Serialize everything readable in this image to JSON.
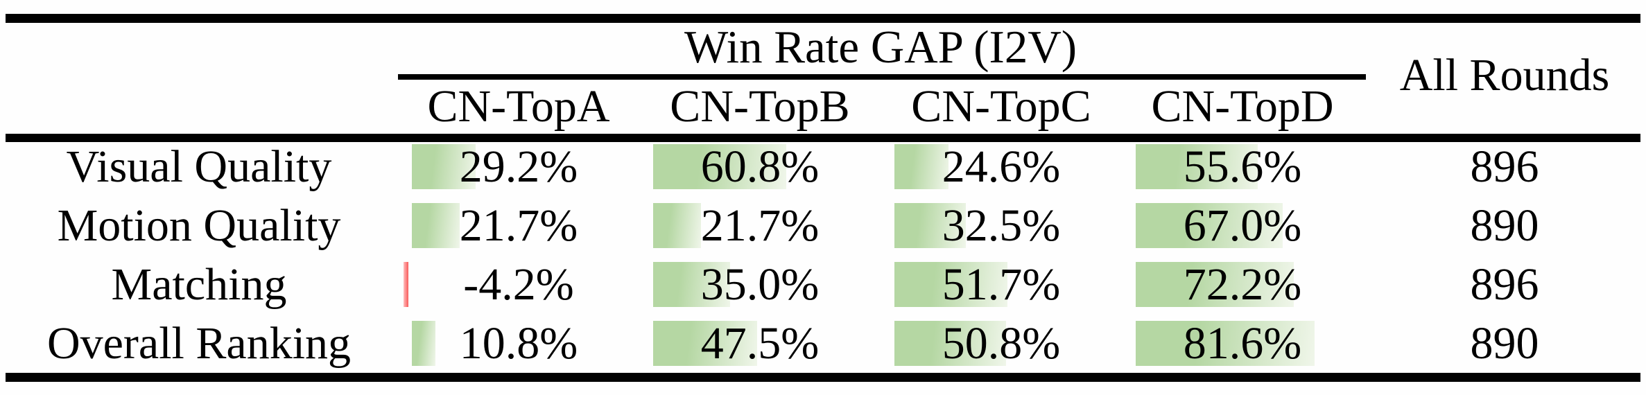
{
  "table": {
    "title": "Win Rate GAP (I2V)",
    "all_rounds_header": "All Rounds",
    "columns": [
      "CN-TopA",
      "CN-TopB",
      "CN-TopC",
      "CN-TopD"
    ],
    "rows": [
      {
        "label": "Visual Quality",
        "values": [
          29.2,
          60.8,
          24.6,
          55.6
        ],
        "display": [
          "29.2%",
          "60.8%",
          "24.6%",
          "55.6%"
        ],
        "all_rounds": "896"
      },
      {
        "label": "Motion Quality",
        "values": [
          21.7,
          21.7,
          32.5,
          67.0
        ],
        "display": [
          "21.7%",
          "21.7%",
          "32.5%",
          "67.0%"
        ],
        "all_rounds": "890"
      },
      {
        "label": "Matching",
        "values": [
          -4.2,
          35.0,
          51.7,
          72.2
        ],
        "display": [
          "-4.2%",
          "35.0%",
          "51.7%",
          "72.2%"
        ],
        "all_rounds": "896"
      },
      {
        "label": "Overall Ranking",
        "values": [
          10.8,
          47.5,
          50.8,
          81.6
        ],
        "display": [
          "10.8%",
          "47.5%",
          "50.8%",
          "81.6%"
        ],
        "all_rounds": "890"
      }
    ],
    "colors": {
      "bar_positive": "#b5d7a3",
      "bar_positive_fade": "#f0f6ea",
      "bar_negative": "#f85b5b",
      "bar_negative_fade": "#ffbdbd",
      "rule_black": "#000000"
    }
  },
  "chart_data": {
    "type": "table",
    "title": "Win Rate GAP (I2V)",
    "categories": [
      "Visual Quality",
      "Motion Quality",
      "Matching",
      "Overall Ranking"
    ],
    "series": [
      {
        "name": "CN-TopA",
        "values": [
          29.2,
          21.7,
          -4.2,
          10.8
        ]
      },
      {
        "name": "CN-TopB",
        "values": [
          60.8,
          21.7,
          35.0,
          47.5
        ]
      },
      {
        "name": "CN-TopC",
        "values": [
          24.6,
          32.5,
          51.7,
          50.8
        ]
      },
      {
        "name": "CN-TopD",
        "values": [
          55.6,
          67.0,
          72.2,
          81.6
        ]
      },
      {
        "name": "All Rounds",
        "values": [
          896,
          890,
          896,
          890
        ]
      }
    ],
    "unit": "percent",
    "bar_style": "in-cell green gradient data bars, red for negative"
  }
}
